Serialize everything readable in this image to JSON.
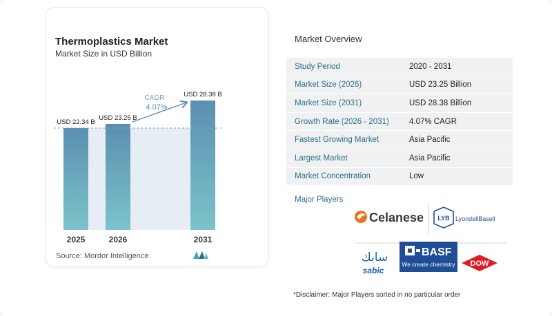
{
  "chart_data": {
    "type": "bar",
    "title": "Thermoplastics Market",
    "subtitle": "Market Size in USD Billion",
    "categories": [
      "2025",
      "2026",
      "2031"
    ],
    "values": [
      22.34,
      23.25,
      28.38
    ],
    "value_labels": [
      "USD 22.34 B",
      "USD 23.25 B",
      "USD 28.38 B"
    ],
    "cagr_label": "CAGR",
    "cagr_value": "4.07%",
    "ylim": [
      0,
      28.38
    ],
    "bar_color_top": "#5a8fb0",
    "bar_color_bottom": "#7cc3cb",
    "band_color": "#e6edf4"
  },
  "source": "Source:  Mordor Intelligence",
  "overview": {
    "title": "Market Overview",
    "rows": [
      {
        "key": "Study Period",
        "value": "2020 - 2031"
      },
      {
        "key": "Market Size (2026)",
        "value": "USD 23.25 Billion"
      },
      {
        "key": "Market Size (2031)",
        "value": "USD 28.38 Billion"
      },
      {
        "key": "Growth Rate (2026 - 2031)",
        "value": "4.07% CAGR"
      },
      {
        "key": "Fastest Growing Market",
        "value": "Asia Pacific"
      },
      {
        "key": "Largest Market",
        "value": "Asia Pacific"
      },
      {
        "key": "Market Concentration",
        "value": "Low"
      }
    ],
    "major_players_title": "Major Players",
    "players": {
      "celanese": "Celanese",
      "lyb_mark": "LYB",
      "lyondellbasell": "LyondellBasell",
      "sabic_arabic": "سابك",
      "sabic": "sabic",
      "basf": "BASF",
      "basf_tagline": "We create chemistry",
      "dow": "DOW"
    },
    "disclaimer": "*Disclaimer: Major Players sorted in no particular order"
  }
}
